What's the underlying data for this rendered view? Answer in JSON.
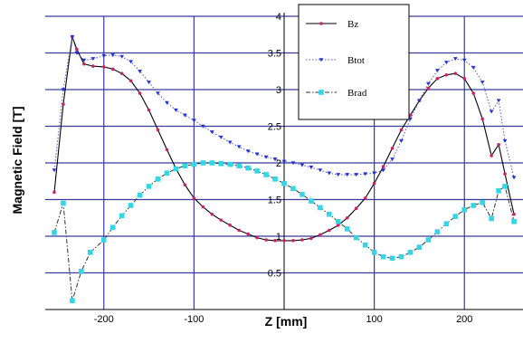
{
  "chart_data": {
    "type": "line",
    "xlabel": "Z [mm]",
    "ylabel": "Magnetic Field [T]",
    "xlim": [
      -265,
      265
    ],
    "ylim": [
      0,
      4
    ],
    "x_ticks": [
      "-200",
      "-100",
      "100",
      "200"
    ],
    "y_ticks": [
      "0.5",
      "1",
      "1.5",
      "2",
      "2.5",
      "3",
      "3.5",
      "4"
    ],
    "x_gridlines": [
      -200,
      -100,
      100,
      200
    ],
    "y_gridlines": [
      0.5,
      1,
      1.5,
      2,
      2.5,
      3,
      3.5,
      4
    ],
    "zero_axis": 0,
    "grid": true,
    "legend": "top-center",
    "colors": {
      "grid": "#3b3b9e",
      "zero_axis": "#000000",
      "bz": "#000000",
      "bz_marker": "#cc2266",
      "btot": "#5555bb",
      "btot_marker": "#2233dd",
      "brad": "#333333",
      "brad_marker": "#33d6e6"
    },
    "series": [
      {
        "name": "Bz",
        "marker": "dot",
        "x": [
          -255,
          -245,
          -235,
          -230,
          -222,
          -212,
          -200,
          -190,
          -180,
          -170,
          -160,
          -150,
          -140,
          -130,
          -120,
          -110,
          -100,
          -90,
          -80,
          -70,
          -60,
          -50,
          -40,
          -30,
          -20,
          -10,
          0,
          10,
          20,
          30,
          40,
          50,
          60,
          70,
          80,
          90,
          100,
          110,
          120,
          130,
          140,
          150,
          160,
          170,
          180,
          190,
          200,
          210,
          220,
          230,
          238,
          245,
          255
        ],
        "values": [
          1.6,
          2.8,
          3.72,
          3.55,
          3.35,
          3.32,
          3.31,
          3.28,
          3.22,
          3.12,
          2.95,
          2.72,
          2.45,
          2.18,
          1.92,
          1.7,
          1.52,
          1.4,
          1.3,
          1.22,
          1.15,
          1.08,
          1.03,
          0.98,
          0.95,
          0.94,
          0.94,
          0.94,
          0.95,
          0.97,
          1.02,
          1.08,
          1.15,
          1.25,
          1.38,
          1.52,
          1.72,
          1.95,
          2.2,
          2.45,
          2.65,
          2.85,
          3.02,
          3.15,
          3.2,
          3.22,
          3.15,
          2.95,
          2.6,
          2.1,
          2.25,
          1.85,
          1.3
        ]
      },
      {
        "name": "Btot",
        "marker": "triangle",
        "x": [
          -255,
          -245,
          -235,
          -230,
          -222,
          -212,
          -200,
          -190,
          -180,
          -170,
          -160,
          -150,
          -140,
          -130,
          -120,
          -110,
          -100,
          -90,
          -80,
          -70,
          -60,
          -50,
          -40,
          -30,
          -20,
          -10,
          0,
          10,
          20,
          30,
          40,
          50,
          60,
          70,
          80,
          90,
          100,
          110,
          120,
          130,
          140,
          150,
          160,
          170,
          180,
          190,
          200,
          210,
          220,
          230,
          238,
          245,
          255
        ],
        "values": [
          1.9,
          3.0,
          3.72,
          3.5,
          3.4,
          3.42,
          3.46,
          3.47,
          3.45,
          3.38,
          3.25,
          3.1,
          2.95,
          2.82,
          2.72,
          2.65,
          2.58,
          2.5,
          2.42,
          2.35,
          2.28,
          2.22,
          2.16,
          2.12,
          2.08,
          2.05,
          2.02,
          2.0,
          1.97,
          1.94,
          1.9,
          1.86,
          1.84,
          1.84,
          1.84,
          1.85,
          1.86,
          1.9,
          2.05,
          2.3,
          2.6,
          2.85,
          3.08,
          3.26,
          3.37,
          3.42,
          3.4,
          3.3,
          3.1,
          2.7,
          2.85,
          2.3,
          1.8
        ]
      },
      {
        "name": "Brad",
        "marker": "square",
        "x": [
          -255,
          -245,
          -235,
          -225,
          -215,
          -200,
          -190,
          -180,
          -170,
          -160,
          -150,
          -140,
          -130,
          -120,
          -110,
          -100,
          -90,
          -80,
          -70,
          -60,
          -50,
          -40,
          -30,
          -20,
          -10,
          0,
          10,
          20,
          30,
          40,
          50,
          60,
          70,
          80,
          90,
          100,
          110,
          120,
          130,
          140,
          150,
          160,
          170,
          180,
          190,
          200,
          210,
          220,
          230,
          238,
          245,
          255
        ],
        "values": [
          1.05,
          1.45,
          0.12,
          0.52,
          0.78,
          0.95,
          1.12,
          1.28,
          1.42,
          1.56,
          1.68,
          1.78,
          1.86,
          1.92,
          1.96,
          1.98,
          2.0,
          2.0,
          1.99,
          1.98,
          1.96,
          1.93,
          1.89,
          1.84,
          1.78,
          1.72,
          1.65,
          1.57,
          1.48,
          1.39,
          1.3,
          1.2,
          1.1,
          0.98,
          0.88,
          0.78,
          0.72,
          0.7,
          0.72,
          0.78,
          0.85,
          0.95,
          1.06,
          1.17,
          1.27,
          1.36,
          1.42,
          1.46,
          1.24,
          1.62,
          1.68,
          1.2
        ]
      }
    ]
  }
}
